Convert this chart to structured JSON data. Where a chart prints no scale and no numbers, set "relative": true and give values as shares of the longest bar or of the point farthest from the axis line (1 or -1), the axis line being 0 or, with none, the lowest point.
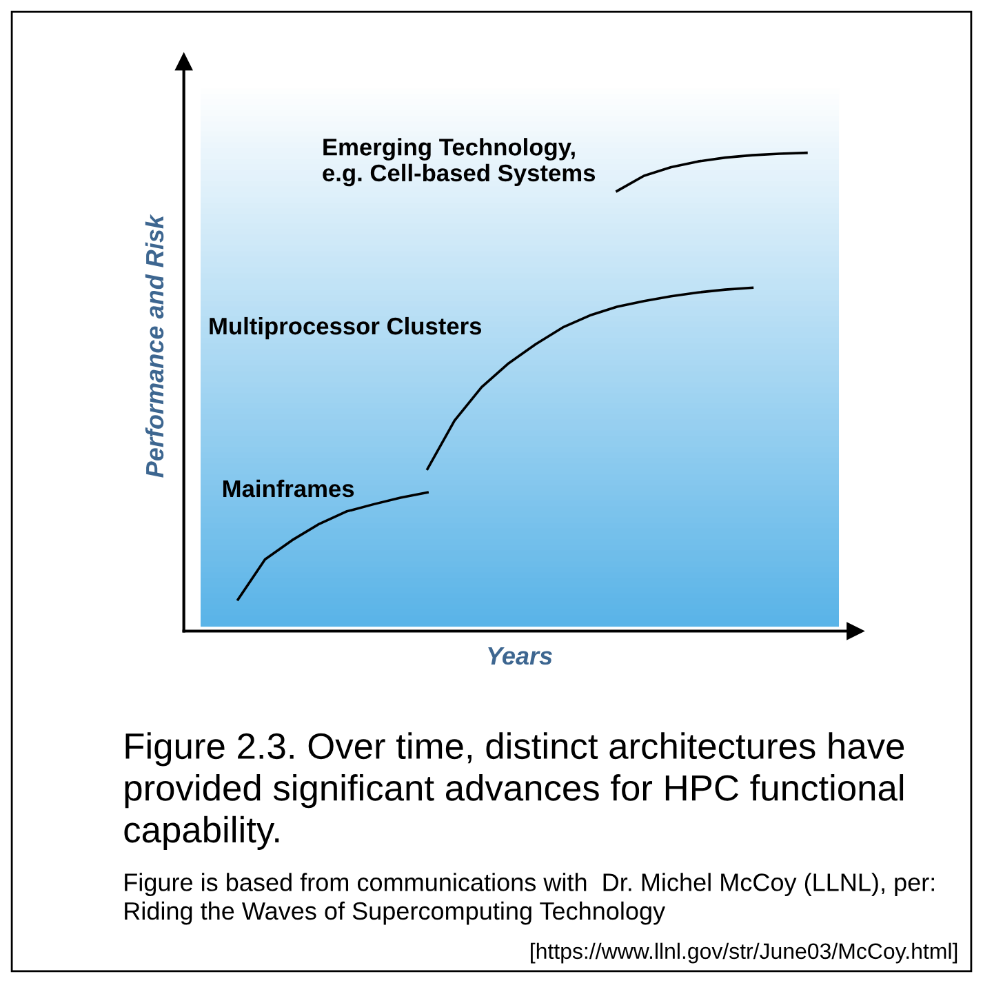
{
  "chart_data": {
    "type": "line",
    "relative": true,
    "xlabel": "Years",
    "ylabel": "Performance and Risk",
    "legend": false,
    "line_style": "solid",
    "categories": [
      null,
      null,
      null,
      null,
      null,
      null,
      null,
      null,
      null,
      null,
      null,
      null,
      null,
      null,
      null,
      null,
      null,
      null,
      null,
      null,
      null,
      null
    ],
    "series": [
      {
        "name": "Mainframes",
        "color": "#000000",
        "values": [
          0.066,
          0.15,
          0.19,
          0.224,
          0.25,
          0.265,
          0.279,
          0.29,
          null,
          null,
          null,
          null,
          null,
          null,
          null,
          null,
          null,
          null,
          null,
          null,
          null,
          null
        ]
      },
      {
        "name": "Multiprocessor Clusters",
        "color": "#000000",
        "values": [
          null,
          null,
          null,
          null,
          null,
          null,
          null,
          0.339,
          0.44,
          0.51,
          0.56,
          0.6,
          0.635,
          0.66,
          0.678,
          0.69,
          0.7,
          0.708,
          0.714,
          0.718,
          null,
          null
        ]
      },
      {
        "name": "Emerging Technology,\ne.g. Cell-based Systems",
        "color": "#000000",
        "values": [
          null,
          null,
          null,
          null,
          null,
          null,
          null,
          null,
          null,
          null,
          null,
          null,
          null,
          null,
          0.92,
          0.952,
          0.97,
          0.982,
          0.99,
          0.995,
          0.998,
          1
        ]
      }
    ],
    "annotations": [
      "Figure 2.3. Over time, distinct architectures have provided significant advances for HPC functional capability.",
      "Figure is based from communications with  Dr. Michel McCoy (LLNL), per: Riding the Waves of Supercomputing Technology",
      "[https://www.llnl.gov/str/June03/McCoy.html]"
    ]
  }
}
